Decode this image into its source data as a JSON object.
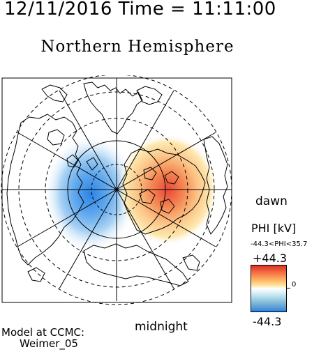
{
  "header": {
    "timestamp": "12/11/2016 Time = 11:11:00"
  },
  "title": "Northern Hemisphere",
  "labels": {
    "dawn": "dawn",
    "midnight": "midnight"
  },
  "model": {
    "line1": "Model at CCMC:",
    "line2": "Weimer_05"
  },
  "colorbar": {
    "title": "PHI [kV]",
    "range_text": "-44.3<PHI<35.7",
    "max_label": "+44.3",
    "zero_label": "0",
    "min_label": "-44.3",
    "colors": {
      "positive": "#d73027",
      "neutral": "#ffffff",
      "negative": "#2b83e6"
    }
  },
  "potential": {
    "unit": "kV",
    "max": 35.7,
    "min": -44.3,
    "negative_cell": "dusk side",
    "positive_cell": "dawn side"
  },
  "map": {
    "projection": "polar stereographic, north pole at center",
    "grid": {
      "latitude_circles_dashed": true,
      "meridians_every_deg": 30
    },
    "coastlines_color": "#000000"
  }
}
